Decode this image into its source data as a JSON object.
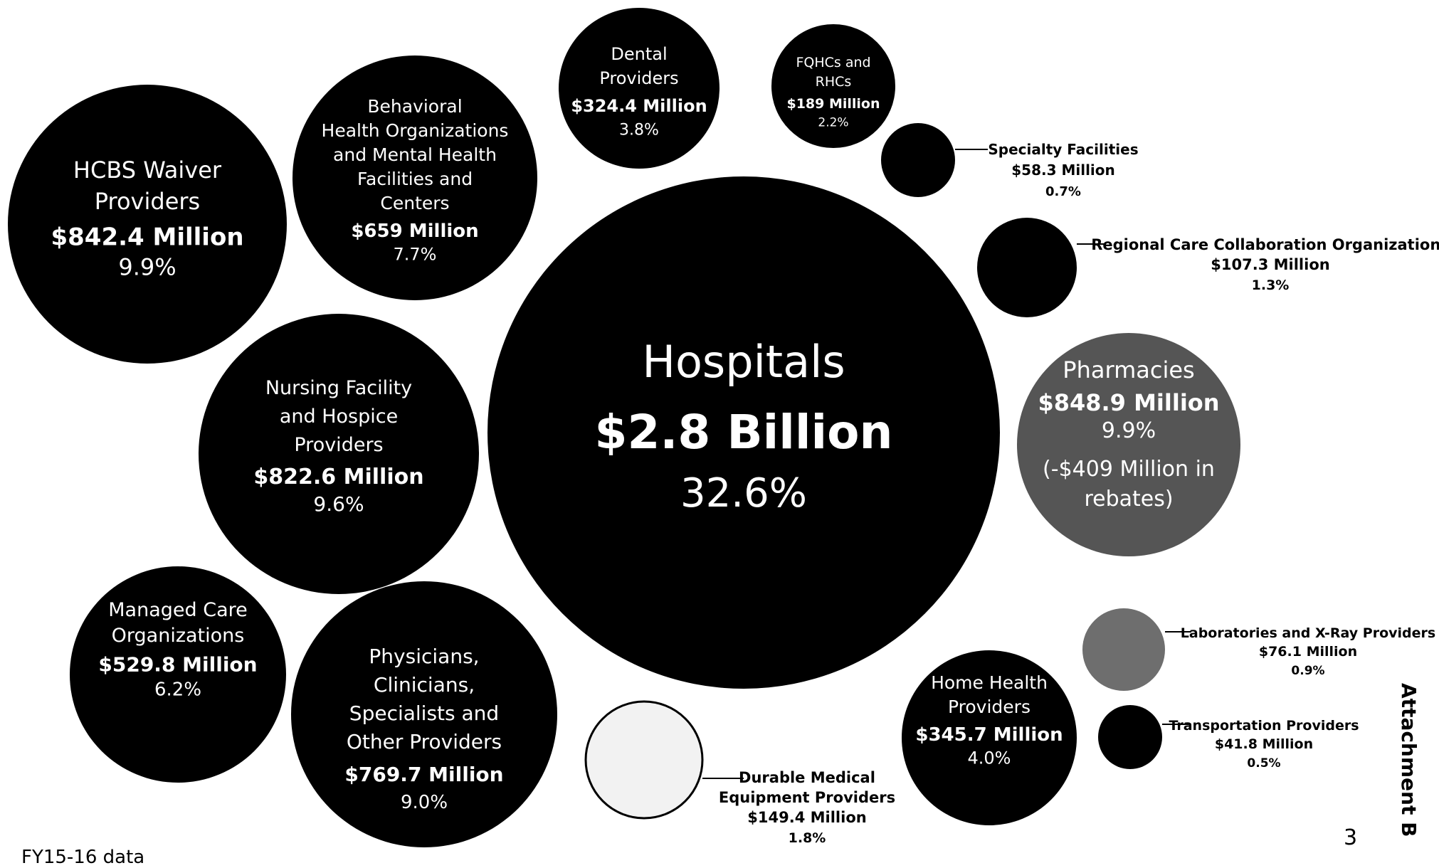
{
  "footnote": "FY15-16 data",
  "page_number": "3",
  "side_label": "Attachment B",
  "colors": {
    "bubble": "#000000",
    "pharmacies": "#555555",
    "laboratories": "#6e6e6e",
    "durable_medical": "#f2f2f2",
    "inside_text": "#ffffff",
    "outside_text": "#000000"
  },
  "chart_data": {
    "type": "bubble",
    "title": "",
    "series": [
      {
        "name": "Hospitals",
        "value_label": "$2.8 Billion",
        "percent": "32.6%",
        "value_millions": 2800,
        "percent_value": 32.6,
        "extra": ""
      },
      {
        "name": "Pharmacies",
        "value_label": "$848.9 Million",
        "percent": "9.9%",
        "value_millions": 848.9,
        "percent_value": 9.9,
        "extra": "(-$409 Million in rebates)"
      },
      {
        "name": "HCBS Waiver Providers",
        "value_label": "$842.4 Million",
        "percent": "9.9%",
        "value_millions": 842.4,
        "percent_value": 9.9,
        "extra": ""
      },
      {
        "name": "Nursing Facility and Hospice Providers",
        "value_label": "$822.6 Million",
        "percent": "9.6%",
        "value_millions": 822.6,
        "percent_value": 9.6,
        "extra": ""
      },
      {
        "name": "Physicians, Clinicians, Specialists and Other Providers",
        "value_label": "$769.7 Million",
        "percent": "9.0%",
        "value_millions": 769.7,
        "percent_value": 9.0,
        "extra": ""
      },
      {
        "name": "Behavioral Health Organizations and Mental Health Facilities and Centers",
        "value_label": "$659 Million",
        "percent": "7.7%",
        "value_millions": 659,
        "percent_value": 7.7,
        "extra": ""
      },
      {
        "name": "Managed Care Organizations",
        "value_label": "$529.8 Million",
        "percent": "6.2%",
        "value_millions": 529.8,
        "percent_value": 6.2,
        "extra": ""
      },
      {
        "name": "Home Health Providers",
        "value_label": "$345.7 Million",
        "percent": "4.0%",
        "value_millions": 345.7,
        "percent_value": 4.0,
        "extra": ""
      },
      {
        "name": "Dental Providers",
        "value_label": "$324.4 Million",
        "percent": "3.8%",
        "value_millions": 324.4,
        "percent_value": 3.8,
        "extra": ""
      },
      {
        "name": "FQHCs and RHCs",
        "value_label": "$189 Million",
        "percent": "2.2%",
        "value_millions": 189,
        "percent_value": 2.2,
        "extra": ""
      },
      {
        "name": "Durable Medical Equipment Providers",
        "value_label": "$149.4 Million",
        "percent": "1.8%",
        "value_millions": 149.4,
        "percent_value": 1.8,
        "extra": ""
      },
      {
        "name": "Regional Care Collaboration Organizations",
        "value_label": "$107.3 Million",
        "percent": "1.3%",
        "value_millions": 107.3,
        "percent_value": 1.3,
        "extra": ""
      },
      {
        "name": "Laboratories and X-Ray Providers",
        "value_label": "$76.1 Million",
        "percent": "0.9%",
        "value_millions": 76.1,
        "percent_value": 0.9,
        "extra": ""
      },
      {
        "name": "Specialty Facilities",
        "value_label": "$58.3 Million",
        "percent": "0.7%",
        "value_millions": 58.3,
        "percent_value": 0.7,
        "extra": ""
      },
      {
        "name": "Transportation Providers",
        "value_label": "$41.8 Million",
        "percent": "0.5%",
        "value_millions": 41.8,
        "percent_value": 0.5,
        "extra": ""
      }
    ]
  }
}
